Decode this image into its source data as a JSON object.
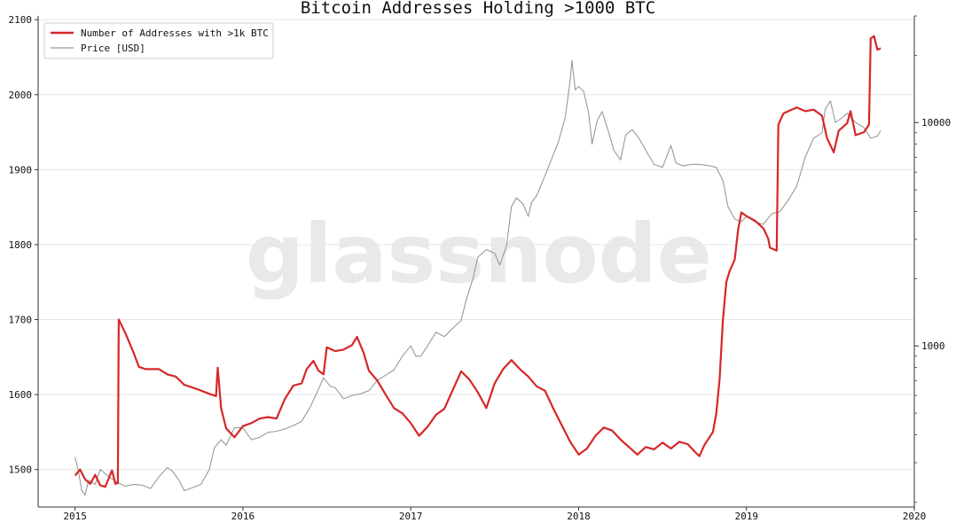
{
  "chart_data": {
    "type": "line",
    "title": "Bitcoin Addresses Holding >1000 BTC",
    "watermark": "glassnode",
    "xlabel": "",
    "ylabel": "",
    "x_ticks": [
      "2015",
      "2016",
      "2017",
      "2018",
      "2019",
      "2020"
    ],
    "xlim": [
      2014.78,
      2020.0
    ],
    "y_left": {
      "ticks": [
        1500,
        1600,
        1700,
        1800,
        1900,
        2000,
        2100
      ],
      "lim": [
        1450,
        2105
      ]
    },
    "y_right": {
      "scale": "log",
      "ticks": [
        1000,
        10000
      ],
      "tick_labels": [
        "1000",
        "10000"
      ],
      "lim": [
        190,
        30000
      ]
    },
    "grid": true,
    "legend_position": "top-left",
    "series": [
      {
        "name": "Number of Addresses with >1k BTC",
        "axis": "left",
        "color": "#d62728",
        "points": [
          [
            2015.0,
            1492
          ],
          [
            2015.03,
            1500
          ],
          [
            2015.06,
            1487
          ],
          [
            2015.09,
            1481
          ],
          [
            2015.12,
            1493
          ],
          [
            2015.15,
            1479
          ],
          [
            2015.18,
            1477
          ],
          [
            2015.22,
            1499
          ],
          [
            2015.24,
            1481
          ],
          [
            2015.255,
            1482
          ],
          [
            2015.26,
            1700
          ],
          [
            2015.3,
            1682
          ],
          [
            2015.35,
            1655
          ],
          [
            2015.38,
            1637
          ],
          [
            2015.42,
            1634
          ],
          [
            2015.5,
            1634
          ],
          [
            2015.55,
            1627
          ],
          [
            2015.6,
            1624
          ],
          [
            2015.65,
            1613
          ],
          [
            2015.72,
            1608
          ],
          [
            2015.8,
            1601
          ],
          [
            2015.84,
            1598
          ],
          [
            2015.85,
            1636
          ],
          [
            2015.87,
            1582
          ],
          [
            2015.9,
            1555
          ],
          [
            2015.95,
            1543
          ],
          [
            2016.0,
            1558
          ],
          [
            2016.05,
            1562
          ],
          [
            2016.1,
            1568
          ],
          [
            2016.15,
            1570
          ],
          [
            2016.2,
            1568
          ],
          [
            2016.25,
            1594
          ],
          [
            2016.3,
            1612
          ],
          [
            2016.35,
            1615
          ],
          [
            2016.38,
            1634
          ],
          [
            2016.42,
            1645
          ],
          [
            2016.45,
            1632
          ],
          [
            2016.48,
            1627
          ],
          [
            2016.5,
            1663
          ],
          [
            2016.55,
            1658
          ],
          [
            2016.6,
            1660
          ],
          [
            2016.65,
            1666
          ],
          [
            2016.68,
            1677
          ],
          [
            2016.72,
            1655
          ],
          [
            2016.75,
            1632
          ],
          [
            2016.8,
            1619
          ],
          [
            2016.85,
            1600
          ],
          [
            2016.9,
            1582
          ],
          [
            2016.95,
            1575
          ],
          [
            2017.0,
            1562
          ],
          [
            2017.05,
            1545
          ],
          [
            2017.1,
            1557
          ],
          [
            2017.15,
            1573
          ],
          [
            2017.2,
            1581
          ],
          [
            2017.25,
            1606
          ],
          [
            2017.3,
            1631
          ],
          [
            2017.35,
            1620
          ],
          [
            2017.4,
            1603
          ],
          [
            2017.45,
            1582
          ],
          [
            2017.5,
            1615
          ],
          [
            2017.55,
            1634
          ],
          [
            2017.6,
            1646
          ],
          [
            2017.65,
            1634
          ],
          [
            2017.7,
            1624
          ],
          [
            2017.75,
            1611
          ],
          [
            2017.8,
            1605
          ],
          [
            2017.85,
            1581
          ],
          [
            2017.9,
            1559
          ],
          [
            2017.95,
            1537
          ],
          [
            2018.0,
            1520
          ],
          [
            2018.05,
            1528
          ],
          [
            2018.1,
            1545
          ],
          [
            2018.15,
            1556
          ],
          [
            2018.2,
            1552
          ],
          [
            2018.25,
            1540
          ],
          [
            2018.3,
            1530
          ],
          [
            2018.35,
            1520
          ],
          [
            2018.4,
            1530
          ],
          [
            2018.45,
            1527
          ],
          [
            2018.5,
            1536
          ],
          [
            2018.55,
            1528
          ],
          [
            2018.6,
            1537
          ],
          [
            2018.65,
            1534
          ],
          [
            2018.7,
            1522
          ],
          [
            2018.72,
            1518
          ],
          [
            2018.75,
            1533
          ],
          [
            2018.8,
            1550
          ],
          [
            2018.82,
            1575
          ],
          [
            2018.84,
            1620
          ],
          [
            2018.86,
            1700
          ],
          [
            2018.88,
            1750
          ],
          [
            2018.9,
            1765
          ],
          [
            2018.93,
            1780
          ],
          [
            2018.95,
            1820
          ],
          [
            2018.97,
            1843
          ],
          [
            2019.0,
            1838
          ],
          [
            2019.05,
            1832
          ],
          [
            2019.1,
            1822
          ],
          [
            2019.13,
            1808
          ],
          [
            2019.14,
            1796
          ],
          [
            2019.18,
            1792
          ],
          [
            2019.19,
            1960
          ],
          [
            2019.22,
            1975
          ],
          [
            2019.25,
            1978
          ],
          [
            2019.3,
            1983
          ],
          [
            2019.35,
            1978
          ],
          [
            2019.4,
            1980
          ],
          [
            2019.45,
            1972
          ],
          [
            2019.48,
            1942
          ],
          [
            2019.52,
            1923
          ],
          [
            2019.55,
            1952
          ],
          [
            2019.6,
            1962
          ],
          [
            2019.62,
            1978
          ],
          [
            2019.65,
            1946
          ],
          [
            2019.7,
            1950
          ],
          [
            2019.73,
            1960
          ],
          [
            2019.74,
            2075
          ],
          [
            2019.76,
            2078
          ],
          [
            2019.78,
            2060
          ],
          [
            2019.8,
            2062
          ]
        ]
      },
      {
        "name": "Price [USD]",
        "axis": "right",
        "color": "#999999",
        "points": [
          [
            2015.0,
            318
          ],
          [
            2015.02,
            275
          ],
          [
            2015.04,
            225
          ],
          [
            2015.06,
            215
          ],
          [
            2015.08,
            250
          ],
          [
            2015.12,
            240
          ],
          [
            2015.15,
            280
          ],
          [
            2015.2,
            260
          ],
          [
            2015.25,
            245
          ],
          [
            2015.3,
            236
          ],
          [
            2015.35,
            240
          ],
          [
            2015.4,
            238
          ],
          [
            2015.45,
            230
          ],
          [
            2015.5,
            260
          ],
          [
            2015.55,
            285
          ],
          [
            2015.58,
            275
          ],
          [
            2015.62,
            250
          ],
          [
            2015.65,
            225
          ],
          [
            2015.7,
            232
          ],
          [
            2015.75,
            240
          ],
          [
            2015.8,
            280
          ],
          [
            2015.83,
            350
          ],
          [
            2015.87,
            380
          ],
          [
            2015.9,
            360
          ],
          [
            2015.95,
            430
          ],
          [
            2016.0,
            430
          ],
          [
            2016.05,
            380
          ],
          [
            2016.1,
            390
          ],
          [
            2016.15,
            410
          ],
          [
            2016.2,
            415
          ],
          [
            2016.25,
            425
          ],
          [
            2016.3,
            440
          ],
          [
            2016.35,
            460
          ],
          [
            2016.4,
            530
          ],
          [
            2016.45,
            640
          ],
          [
            2016.48,
            720
          ],
          [
            2016.52,
            660
          ],
          [
            2016.55,
            650
          ],
          [
            2016.6,
            580
          ],
          [
            2016.65,
            600
          ],
          [
            2016.7,
            610
          ],
          [
            2016.75,
            630
          ],
          [
            2016.8,
            700
          ],
          [
            2016.85,
            740
          ],
          [
            2016.9,
            780
          ],
          [
            2016.95,
            900
          ],
          [
            2017.0,
            1000
          ],
          [
            2017.03,
            900
          ],
          [
            2017.06,
            900
          ],
          [
            2017.1,
            1000
          ],
          [
            2017.15,
            1150
          ],
          [
            2017.2,
            1100
          ],
          [
            2017.25,
            1200
          ],
          [
            2017.3,
            1300
          ],
          [
            2017.33,
            1600
          ],
          [
            2017.37,
            2000
          ],
          [
            2017.4,
            2500
          ],
          [
            2017.45,
            2700
          ],
          [
            2017.5,
            2600
          ],
          [
            2017.53,
            2300
          ],
          [
            2017.57,
            2800
          ],
          [
            2017.6,
            4200
          ],
          [
            2017.63,
            4600
          ],
          [
            2017.67,
            4300
          ],
          [
            2017.7,
            3800
          ],
          [
            2017.72,
            4400
          ],
          [
            2017.75,
            4700
          ],
          [
            2017.8,
            5800
          ],
          [
            2017.85,
            7200
          ],
          [
            2017.88,
            8200
          ],
          [
            2017.92,
            10500
          ],
          [
            2017.95,
            15500
          ],
          [
            2017.96,
            19000
          ],
          [
            2017.98,
            14000
          ],
          [
            2018.0,
            14500
          ],
          [
            2018.03,
            13800
          ],
          [
            2018.06,
            11000
          ],
          [
            2018.08,
            8000
          ],
          [
            2018.11,
            10200
          ],
          [
            2018.14,
            11200
          ],
          [
            2018.18,
            9000
          ],
          [
            2018.21,
            7500
          ],
          [
            2018.25,
            6800
          ],
          [
            2018.28,
            8800
          ],
          [
            2018.32,
            9300
          ],
          [
            2018.36,
            8500
          ],
          [
            2018.4,
            7500
          ],
          [
            2018.45,
            6500
          ],
          [
            2018.5,
            6300
          ],
          [
            2018.55,
            7900
          ],
          [
            2018.58,
            6600
          ],
          [
            2018.62,
            6400
          ],
          [
            2018.67,
            6500
          ],
          [
            2018.72,
            6500
          ],
          [
            2018.78,
            6400
          ],
          [
            2018.82,
            6300
          ],
          [
            2018.86,
            5500
          ],
          [
            2018.89,
            4200
          ],
          [
            2018.93,
            3700
          ],
          [
            2018.97,
            3600
          ],
          [
            2019.0,
            3800
          ],
          [
            2019.05,
            3600
          ],
          [
            2019.1,
            3500
          ],
          [
            2019.15,
            3900
          ],
          [
            2019.2,
            4000
          ],
          [
            2019.25,
            4500
          ],
          [
            2019.3,
            5200
          ],
          [
            2019.35,
            7000
          ],
          [
            2019.4,
            8500
          ],
          [
            2019.45,
            9000
          ],
          [
            2019.47,
            11500
          ],
          [
            2019.5,
            12500
          ],
          [
            2019.53,
            10000
          ],
          [
            2019.57,
            10500
          ],
          [
            2019.6,
            11000
          ],
          [
            2019.65,
            10000
          ],
          [
            2019.7,
            9500
          ],
          [
            2019.74,
            8500
          ],
          [
            2019.78,
            8700
          ],
          [
            2019.8,
            9200
          ]
        ]
      }
    ]
  }
}
